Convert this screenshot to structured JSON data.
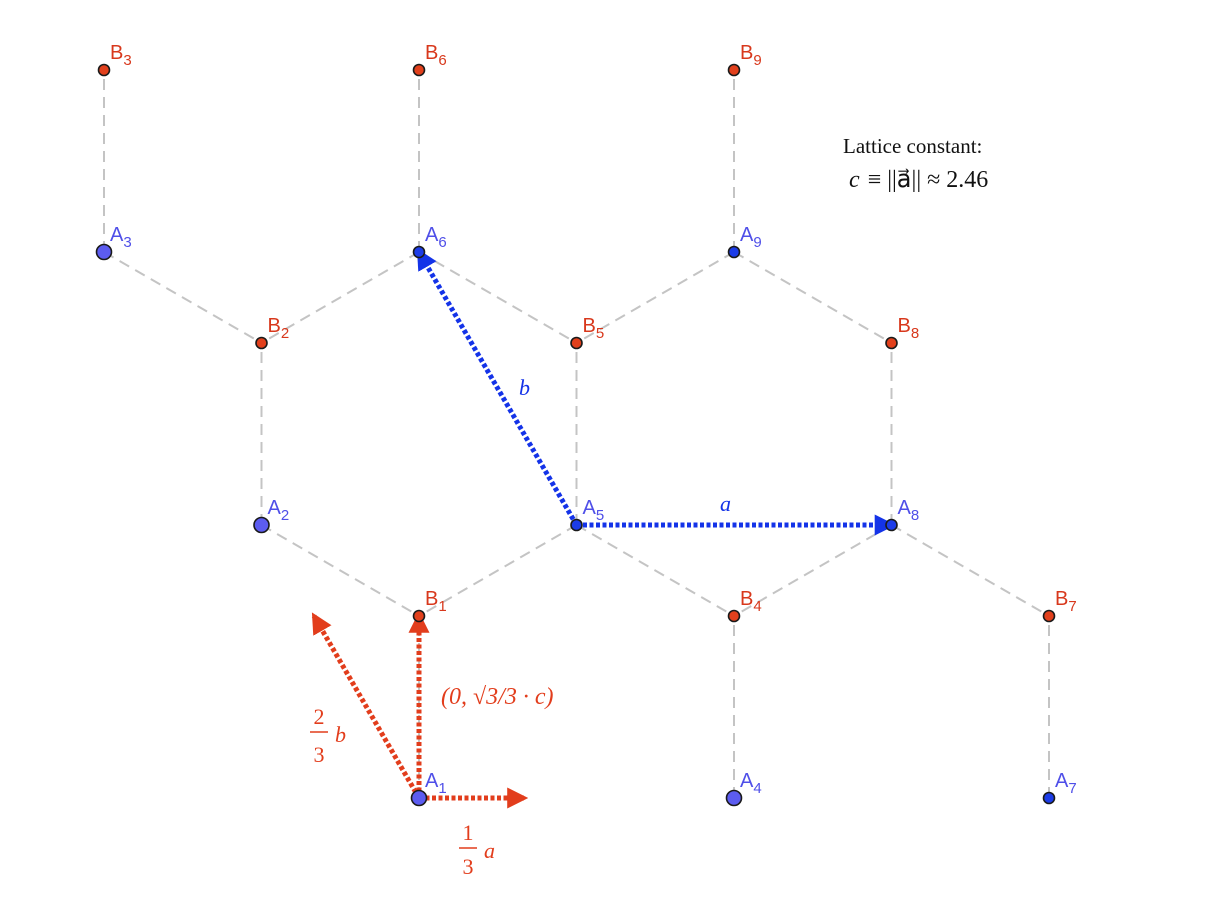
{
  "colors": {
    "atom_a": "#5c5cf0",
    "atom_a_small": "#1c3ce8",
    "atom_b": "#e2401c",
    "label_a": "#4f4fe8",
    "label_b": "#d8381c",
    "vector_lattice": "#1433e8",
    "vector_basis": "#e23d1c",
    "bond": "#c4c4c4",
    "text": "#111111"
  },
  "lattice_info": {
    "heading": "Lattice constant:",
    "formula_var": "c",
    "formula_rest": "≡ ||a⃗|| ≈ 2.46"
  },
  "atoms": [
    {
      "name": "A",
      "index": "1",
      "type": "A",
      "size": "large"
    },
    {
      "name": "A",
      "index": "2",
      "type": "A",
      "size": "large"
    },
    {
      "name": "A",
      "index": "3",
      "type": "A",
      "size": "large"
    },
    {
      "name": "A",
      "index": "4",
      "type": "A",
      "size": "large"
    },
    {
      "name": "A",
      "index": "5",
      "type": "A",
      "size": "small"
    },
    {
      "name": "A",
      "index": "6",
      "type": "A",
      "size": "small"
    },
    {
      "name": "A",
      "index": "7",
      "type": "A",
      "size": "small"
    },
    {
      "name": "A",
      "index": "8",
      "type": "A",
      "size": "small"
    },
    {
      "name": "A",
      "index": "9",
      "type": "A",
      "size": "small"
    },
    {
      "name": "B",
      "index": "1",
      "type": "B",
      "size": "small"
    },
    {
      "name": "B",
      "index": "2",
      "type": "B",
      "size": "small"
    },
    {
      "name": "B",
      "index": "3",
      "type": "B",
      "size": "small"
    },
    {
      "name": "B",
      "index": "4",
      "type": "B",
      "size": "small"
    },
    {
      "name": "B",
      "index": "5",
      "type": "B",
      "size": "small"
    },
    {
      "name": "B",
      "index": "6",
      "type": "B",
      "size": "small"
    },
    {
      "name": "B",
      "index": "7",
      "type": "B",
      "size": "small"
    },
    {
      "name": "B",
      "index": "8",
      "type": "B",
      "size": "small"
    },
    {
      "name": "B",
      "index": "9",
      "type": "B",
      "size": "small"
    }
  ],
  "bonds": [
    [
      "A1",
      "B1"
    ],
    [
      "A2",
      "B1"
    ],
    [
      "A5",
      "B1"
    ],
    [
      "A2",
      "B2"
    ],
    [
      "A3",
      "B2"
    ],
    [
      "A6",
      "B2"
    ],
    [
      "A3",
      "B3"
    ],
    [
      "A4",
      "B4"
    ],
    [
      "A5",
      "B4"
    ],
    [
      "A8",
      "B4"
    ],
    [
      "A5",
      "B5"
    ],
    [
      "A6",
      "B5"
    ],
    [
      "A9",
      "B5"
    ],
    [
      "A6",
      "B6"
    ],
    [
      "A7",
      "B7"
    ],
    [
      "A8",
      "B7"
    ],
    [
      "A8",
      "B8"
    ],
    [
      "A9",
      "B8"
    ],
    [
      "A9",
      "B9"
    ]
  ],
  "vectors": [
    {
      "id": "vector-a",
      "from": "A5",
      "to": "A8",
      "kind": "lattice",
      "label": "a⃗"
    },
    {
      "id": "vector-b",
      "from": "A5",
      "to": "A6",
      "kind": "lattice",
      "label": "b⃗"
    },
    {
      "id": "vector-one-third-a",
      "from": "A1",
      "to_fraction_of": "a",
      "fraction": "1/3",
      "kind": "basis",
      "label": "a⃗",
      "fraction_num": "1",
      "fraction_den": "3"
    },
    {
      "id": "vector-two-thirds-b",
      "from": "A1",
      "to_fraction_of": "b",
      "fraction": "2/3",
      "kind": "basis",
      "label": "b⃗",
      "fraction_num": "2",
      "fraction_den": "3"
    },
    {
      "id": "vector-a1-b1",
      "from": "A1",
      "to": "B1",
      "kind": "basis",
      "label": "(0, √3/3 · c)"
    }
  ]
}
